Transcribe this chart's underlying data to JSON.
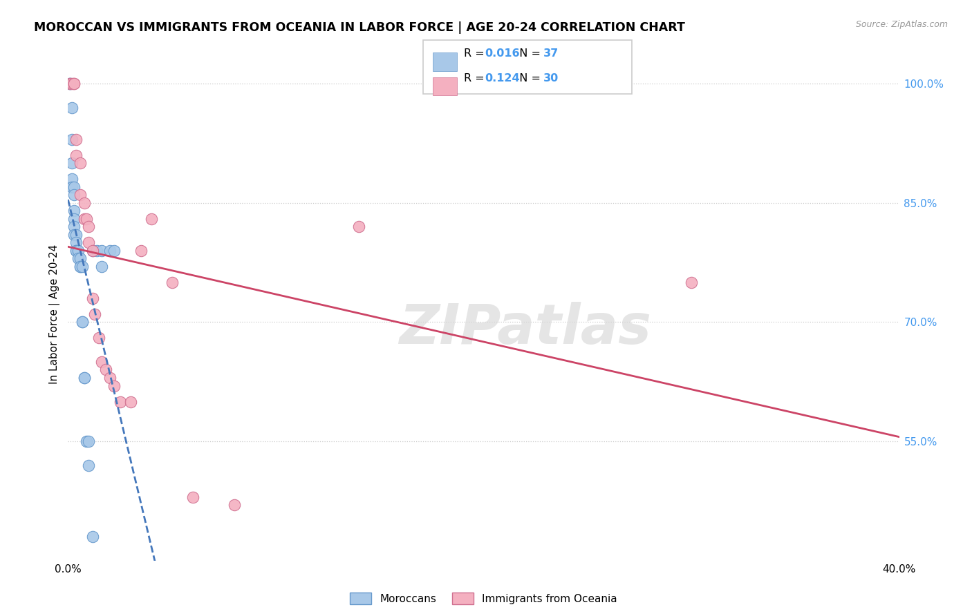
{
  "title": "MOROCCAN VS IMMIGRANTS FROM OCEANIA IN LABOR FORCE | AGE 20-24 CORRELATION CHART",
  "source": "Source: ZipAtlas.com",
  "ylabel": "In Labor Force | Age 20-24",
  "xmin": 0.0,
  "xmax": 0.4,
  "ymin": 0.4,
  "ymax": 1.02,
  "ytick_vals": [
    0.55,
    0.7,
    0.85,
    1.0
  ],
  "ytick_labels": [
    "55.0%",
    "70.0%",
    "85.0%",
    "100.0%"
  ],
  "grid_lines": [
    0.55,
    0.7,
    0.85,
    1.0
  ],
  "blue_color": "#a8c8e8",
  "blue_edge_color": "#6699cc",
  "pink_color": "#f4b0c0",
  "pink_edge_color": "#d07090",
  "blue_line_color": "#4477bb",
  "pink_line_color": "#cc4466",
  "label_color": "#4499ee",
  "legend_r_blue": "0.016",
  "legend_n_blue": "37",
  "legend_r_pink": "0.124",
  "legend_n_pink": "30",
  "legend_label_blue": "Moroccans",
  "legend_label_pink": "Immigrants from Oceania",
  "watermark": "ZIPatlas",
  "blue_x": [
    0.001,
    0.001,
    0.002,
    0.002,
    0.002,
    0.002,
    0.002,
    0.003,
    0.003,
    0.003,
    0.003,
    0.003,
    0.003,
    0.004,
    0.004,
    0.004,
    0.004,
    0.005,
    0.005,
    0.006,
    0.006,
    0.006,
    0.007,
    0.007,
    0.007,
    0.008,
    0.008,
    0.009,
    0.01,
    0.01,
    0.012,
    0.012,
    0.014,
    0.016,
    0.016,
    0.02,
    0.022
  ],
  "blue_y": [
    1.0,
    1.0,
    0.97,
    0.93,
    0.9,
    0.88,
    0.87,
    0.87,
    0.86,
    0.84,
    0.83,
    0.82,
    0.81,
    0.81,
    0.8,
    0.79,
    0.79,
    0.79,
    0.78,
    0.78,
    0.77,
    0.77,
    0.77,
    0.7,
    0.7,
    0.63,
    0.63,
    0.55,
    0.55,
    0.52,
    0.43,
    0.79,
    0.79,
    0.79,
    0.77,
    0.79,
    0.79
  ],
  "pink_x": [
    0.001,
    0.002,
    0.003,
    0.003,
    0.004,
    0.004,
    0.006,
    0.006,
    0.008,
    0.008,
    0.009,
    0.01,
    0.01,
    0.012,
    0.012,
    0.013,
    0.015,
    0.016,
    0.018,
    0.02,
    0.022,
    0.025,
    0.03,
    0.035,
    0.04,
    0.05,
    0.06,
    0.08,
    0.14,
    0.3
  ],
  "pink_y": [
    1.0,
    1.0,
    1.0,
    1.0,
    0.93,
    0.91,
    0.9,
    0.86,
    0.85,
    0.83,
    0.83,
    0.82,
    0.8,
    0.79,
    0.73,
    0.71,
    0.68,
    0.65,
    0.64,
    0.63,
    0.62,
    0.6,
    0.6,
    0.79,
    0.83,
    0.75,
    0.48,
    0.47,
    0.82,
    0.75
  ]
}
